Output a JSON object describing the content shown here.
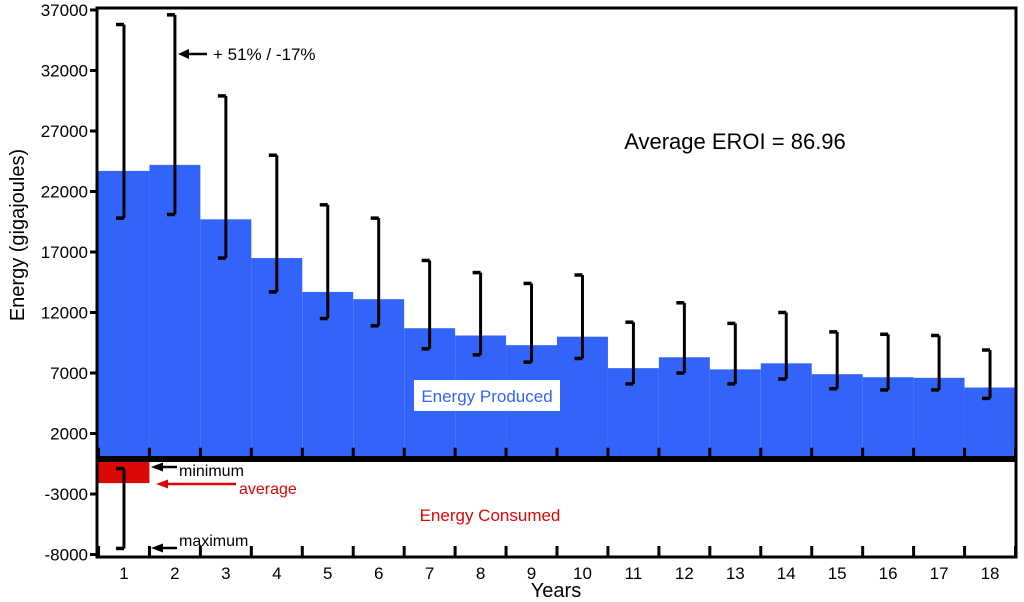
{
  "figure": {
    "eroi_note": "Average EROI = 86.96",
    "error_annotation": "+ 51% / -17%",
    "x_axis_label": "Years",
    "y_axis_label": "Energy (gigajoules)",
    "produced_label": "Energy Produced",
    "consumed_label": "Energy Consumed",
    "minimum_label": "minimum",
    "average_label": "average",
    "maximum_label": "maximum"
  },
  "colors": {
    "produced_blue": "#3364FA",
    "consumed_red": "#DB0806",
    "axis_black": "#000000",
    "background": "#FFFFFF"
  },
  "chart_data": {
    "type": "bar",
    "title": "",
    "xlabel": "Years",
    "ylabel": "Energy (gigajoules)",
    "ylim": [
      -8000,
      37000
    ],
    "y_ticks": [
      37000,
      32000,
      27000,
      22000,
      17000,
      12000,
      7000,
      2000,
      -3000,
      -8000
    ],
    "grid": false,
    "legend_position": "in-plot text labels",
    "categories": [
      1,
      2,
      3,
      4,
      5,
      6,
      7,
      8,
      9,
      10,
      11,
      12,
      13,
      14,
      15,
      16,
      17,
      18
    ],
    "series": [
      {
        "name": "Energy Produced",
        "color": "#3364FA",
        "values": [
          23700,
          24200,
          19700,
          16500,
          13700,
          13100,
          10700,
          10100,
          9300,
          10000,
          7400,
          8300,
          7300,
          7800,
          6900,
          6650,
          6600,
          5800
        ],
        "err_low": [
          19800,
          20100,
          16500,
          13700,
          11500,
          10900,
          9000,
          8500,
          7900,
          8200,
          6100,
          7000,
          6100,
          6500,
          5700,
          5600,
          5600,
          4900
        ],
        "err_high": [
          35800,
          36600,
          29900,
          25000,
          20900,
          19800,
          16300,
          15300,
          14400,
          15100,
          11200,
          12800,
          11100,
          12000,
          10400,
          10200,
          10100,
          8900
        ]
      },
      {
        "name": "Energy Consumed",
        "color": "#DB0806",
        "year": 1,
        "average": -2100,
        "minimum": -900,
        "maximum": -7500
      }
    ],
    "error_note": "+ 51% / -17%",
    "eroi_note": "Average EROI = 86.96"
  }
}
